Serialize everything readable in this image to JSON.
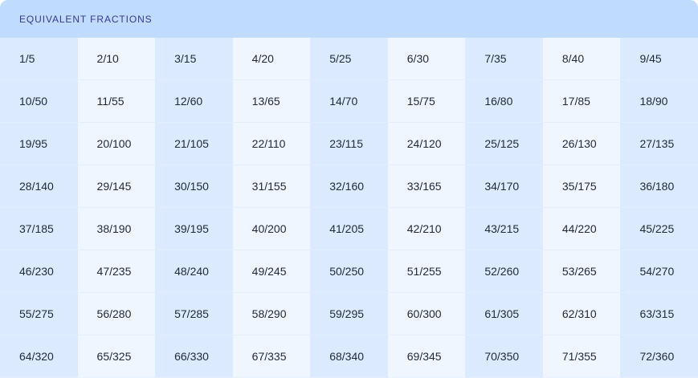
{
  "header": {
    "title": "EQUIVALENT FRACTIONS"
  },
  "colors": {
    "header_bg": "#bfdbfe",
    "column_dark": "#dbeafe",
    "column_light": "#eff6ff",
    "title_text": "#3b3694"
  },
  "fractions": [
    "1/5",
    "2/10",
    "3/15",
    "4/20",
    "5/25",
    "6/30",
    "7/35",
    "8/40",
    "9/45",
    "10/50",
    "11/55",
    "12/60",
    "13/65",
    "14/70",
    "15/75",
    "16/80",
    "17/85",
    "18/90",
    "19/95",
    "20/100",
    "21/105",
    "22/110",
    "23/115",
    "24/120",
    "25/125",
    "26/130",
    "27/135",
    "28/140",
    "29/145",
    "30/150",
    "31/155",
    "32/160",
    "33/165",
    "34/170",
    "35/175",
    "36/180",
    "37/185",
    "38/190",
    "39/195",
    "40/200",
    "41/205",
    "42/210",
    "43/215",
    "44/220",
    "45/225",
    "46/230",
    "47/235",
    "48/240",
    "49/245",
    "50/250",
    "51/255",
    "52/260",
    "53/265",
    "54/270",
    "55/275",
    "56/280",
    "57/285",
    "58/290",
    "59/295",
    "60/300",
    "61/305",
    "62/310",
    "63/315",
    "64/320",
    "65/325",
    "66/330",
    "67/335",
    "68/340",
    "69/345",
    "70/350",
    "71/355",
    "72/360"
  ]
}
